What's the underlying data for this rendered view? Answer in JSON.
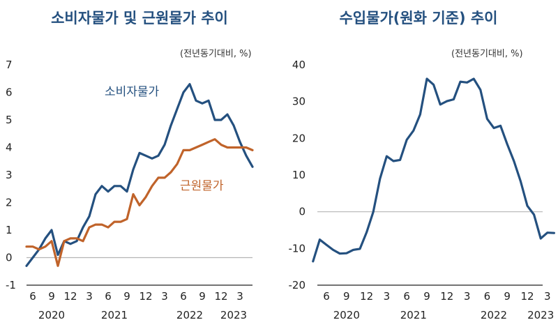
{
  "chart_data": [
    {
      "type": "line",
      "title": "소비자물가 및 근원물가 추이",
      "unit_note": "(전년동기대비, %)",
      "ylim": [
        -1,
        7
      ],
      "yticks": [
        -1,
        0,
        1,
        2,
        3,
        4,
        5,
        6,
        7
      ],
      "x_tick_labels": [
        "6",
        "9",
        "12",
        "3",
        "6",
        "9",
        "12",
        "3",
        "6",
        "9",
        "12",
        "3"
      ],
      "x_year_labels": [
        "2020",
        "2021",
        "2022",
        "2023"
      ],
      "x": [
        "2020-05",
        "2020-06",
        "2020-07",
        "2020-08",
        "2020-09",
        "2020-10",
        "2020-11",
        "2020-12",
        "2021-01",
        "2021-02",
        "2021-03",
        "2021-04",
        "2021-05",
        "2021-06",
        "2021-07",
        "2021-08",
        "2021-09",
        "2021-10",
        "2021-11",
        "2021-12",
        "2022-01",
        "2022-02",
        "2022-03",
        "2022-04",
        "2022-05",
        "2022-06",
        "2022-07",
        "2022-08",
        "2022-09",
        "2022-10",
        "2022-11",
        "2022-12",
        "2023-01",
        "2023-02",
        "2023-03",
        "2023-04",
        "2023-05"
      ],
      "series": [
        {
          "name": "소비자물가",
          "color": "#24507f",
          "values": [
            -0.3,
            0.0,
            0.3,
            0.7,
            1.0,
            0.1,
            0.6,
            0.5,
            0.6,
            1.1,
            1.5,
            2.3,
            2.6,
            2.4,
            2.6,
            2.6,
            2.4,
            3.2,
            3.8,
            3.7,
            3.6,
            3.7,
            4.1,
            4.8,
            5.4,
            6.0,
            6.3,
            5.7,
            5.6,
            5.7,
            5.0,
            5.0,
            5.2,
            4.8,
            4.2,
            3.7,
            3.3
          ]
        },
        {
          "name": "근원물가",
          "color": "#c0632a",
          "values": [
            0.4,
            0.4,
            0.3,
            0.4,
            0.6,
            -0.3,
            0.6,
            0.7,
            0.7,
            0.6,
            1.1,
            1.2,
            1.2,
            1.1,
            1.3,
            1.3,
            1.4,
            2.3,
            1.9,
            2.2,
            2.6,
            2.9,
            2.9,
            3.1,
            3.4,
            3.9,
            3.9,
            4.0,
            4.1,
            4.2,
            4.3,
            4.1,
            4.0,
            4.0,
            4.0,
            4.0,
            3.9
          ]
        }
      ]
    },
    {
      "type": "line",
      "title": "수입물가(원화 기준) 추이",
      "unit_note": "(전년동기대비, %)",
      "ylim": [
        -20,
        40
      ],
      "yticks": [
        -20,
        -10,
        0,
        10,
        20,
        30,
        40
      ],
      "x_tick_labels": [
        "6",
        "9",
        "12",
        "3",
        "6",
        "9",
        "12",
        "3",
        "6",
        "9",
        "12",
        "3"
      ],
      "x_year_labels": [
        "2020",
        "2021",
        "2022",
        "2023"
      ],
      "x": [
        "2020-04",
        "2020-05",
        "2020-06",
        "2020-07",
        "2020-08",
        "2020-09",
        "2020-10",
        "2020-11",
        "2020-12",
        "2021-01",
        "2021-02",
        "2021-03",
        "2021-04",
        "2021-05",
        "2021-06",
        "2021-07",
        "2021-08",
        "2021-09",
        "2021-10",
        "2021-11",
        "2021-12",
        "2022-01",
        "2022-02",
        "2022-03",
        "2022-04",
        "2022-05",
        "2022-06",
        "2022-07",
        "2022-08",
        "2022-09",
        "2022-10",
        "2022-11",
        "2022-12",
        "2023-01",
        "2023-02",
        "2023-03",
        "2023-04"
      ],
      "series": [
        {
          "color": "#24507f",
          "values": [
            -13.5,
            -7.6,
            -9.0,
            -10.4,
            -11.4,
            -11.3,
            -10.4,
            -10.1,
            -5.6,
            0.0,
            9.0,
            15.1,
            13.8,
            14.1,
            19.6,
            22.1,
            26.5,
            36.2,
            34.6,
            29.2,
            30.1,
            30.6,
            35.4,
            35.2,
            36.2,
            33.2,
            25.3,
            22.8,
            23.4,
            18.4,
            13.8,
            8.3,
            1.6,
            -0.8,
            -7.3,
            -5.7,
            -5.8
          ]
        }
      ]
    }
  ]
}
